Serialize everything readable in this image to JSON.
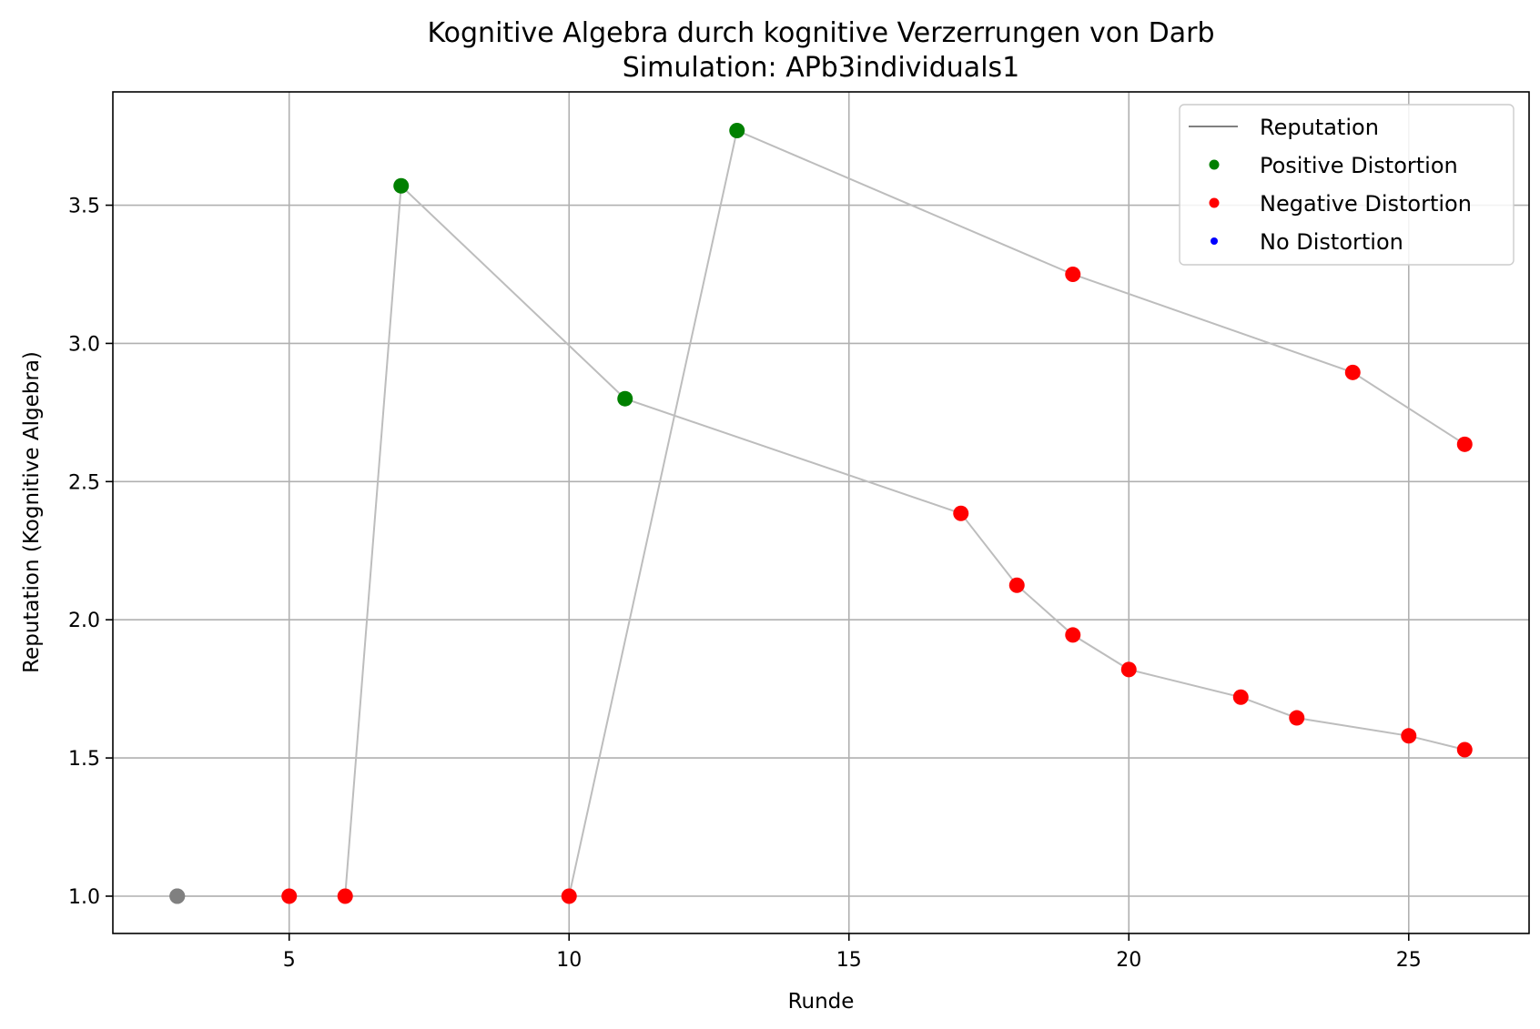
{
  "chart_data": {
    "type": "scatter",
    "title": "Kognitive Algebra durch kognitive Verzerrungen von Darb",
    "subtitle": "Simulation: APb3individuals1",
    "xlabel": "Runde",
    "ylabel": "Reputation (Kognitive Algebra)",
    "xlim": [
      1.85,
      27.15
    ],
    "ylim": [
      0.865,
      3.91
    ],
    "xticks": [
      5,
      10,
      15,
      20,
      25
    ],
    "yticks": [
      1.0,
      1.5,
      2.0,
      2.5,
      3.0,
      3.5
    ],
    "ytick_labels": [
      "1.0",
      "1.5",
      "2.0",
      "2.5",
      "3.0",
      "3.5"
    ],
    "grid": true,
    "legend_position": "top-right",
    "legend": [
      {
        "label": "Reputation",
        "kind": "line",
        "color": "#808080"
      },
      {
        "label": "Positive Distortion",
        "kind": "dot",
        "color": "#008000"
      },
      {
        "label": "Negative Distortion",
        "kind": "dot",
        "color": "#ff0000"
      },
      {
        "label": "No Distortion",
        "kind": "dot",
        "color": "#0000ff"
      }
    ],
    "colors": {
      "line": "#bdbdbd",
      "start": "#808080",
      "positive": "#008000",
      "negative": "#ff0000",
      "none": "#0000ff"
    },
    "series": [
      {
        "points": [
          {
            "x": 3,
            "y": 1.0,
            "kind": "start"
          },
          {
            "x": 5,
            "y": 1.0,
            "kind": "negative"
          },
          {
            "x": 6,
            "y": 1.0,
            "kind": "negative"
          },
          {
            "x": 7,
            "y": 3.57,
            "kind": "positive"
          },
          {
            "x": 11,
            "y": 2.8,
            "kind": "positive"
          },
          {
            "x": 17,
            "y": 2.385,
            "kind": "negative"
          },
          {
            "x": 18,
            "y": 2.125,
            "kind": "negative"
          },
          {
            "x": 19,
            "y": 1.945,
            "kind": "negative"
          },
          {
            "x": 20,
            "y": 1.82,
            "kind": "negative"
          },
          {
            "x": 22,
            "y": 1.72,
            "kind": "negative"
          },
          {
            "x": 23,
            "y": 1.645,
            "kind": "negative"
          },
          {
            "x": 25,
            "y": 1.58,
            "kind": "negative"
          },
          {
            "x": 26,
            "y": 1.53,
            "kind": "negative"
          }
        ]
      },
      {
        "points": [
          {
            "x": 3,
            "y": 1.0,
            "kind": "start"
          },
          {
            "x": 10,
            "y": 1.0,
            "kind": "negative"
          },
          {
            "x": 13,
            "y": 3.77,
            "kind": "positive"
          },
          {
            "x": 19,
            "y": 3.25,
            "kind": "negative"
          },
          {
            "x": 24,
            "y": 2.895,
            "kind": "negative"
          },
          {
            "x": 26,
            "y": 2.635,
            "kind": "negative"
          }
        ]
      }
    ]
  }
}
